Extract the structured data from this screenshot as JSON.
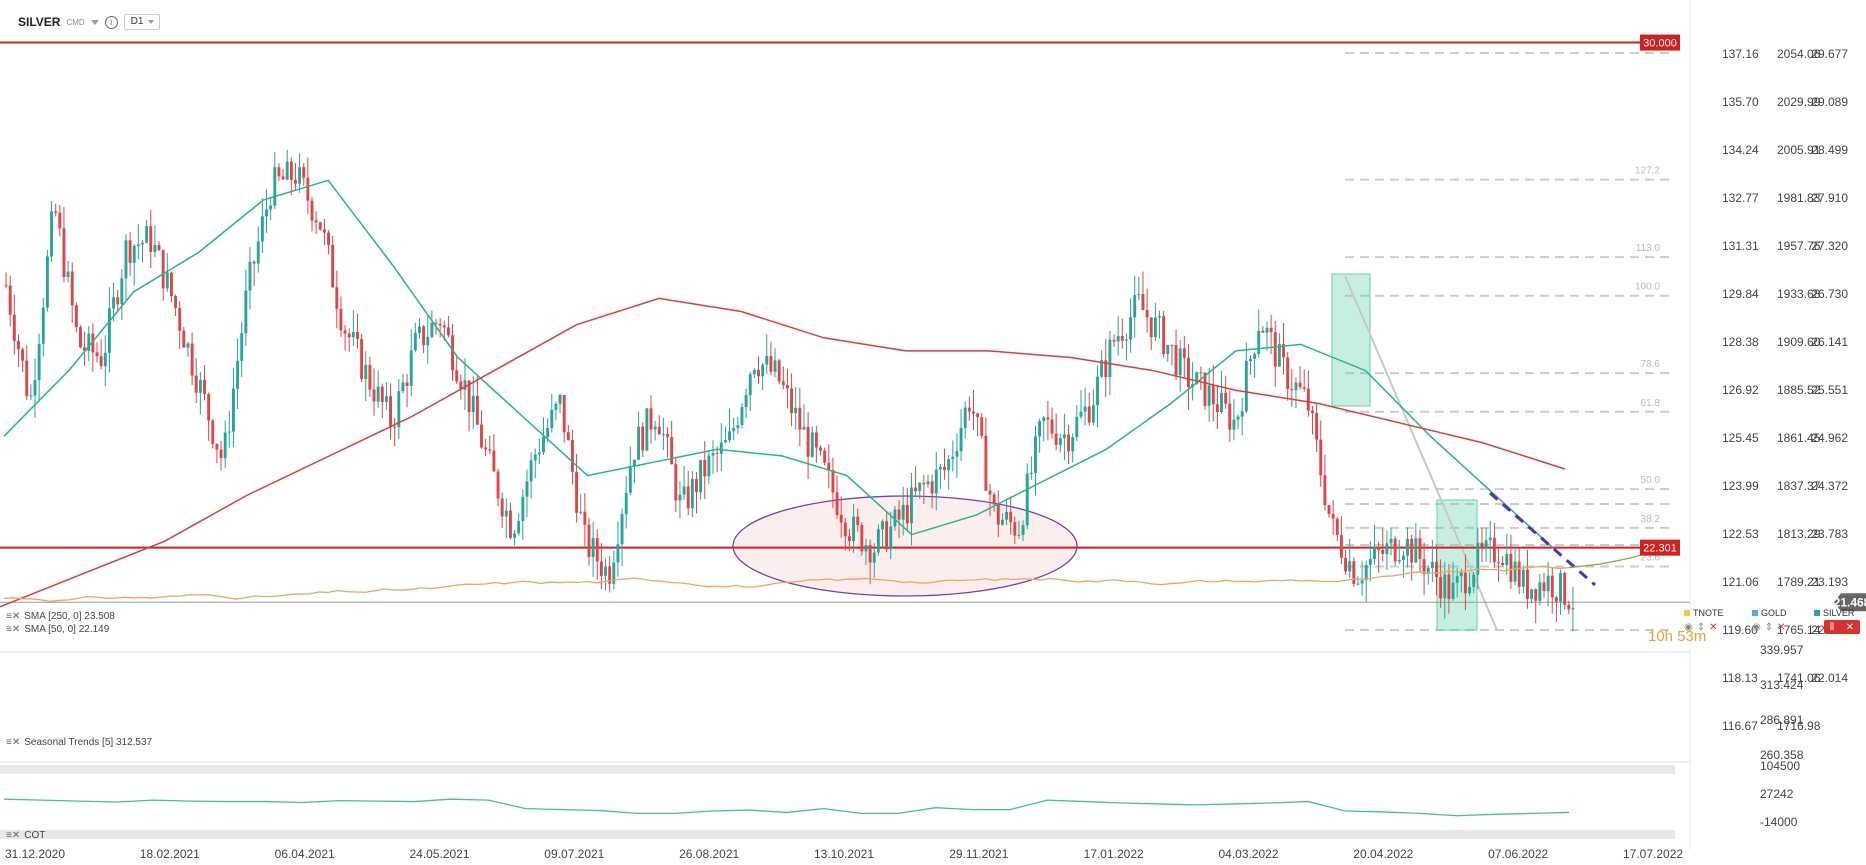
{
  "header": {
    "symbol": "SILVER",
    "exchange": "CMD",
    "timeframe": "D1"
  },
  "price_axis_1": [
    "137.16",
    "135.70",
    "134.24",
    "132.77",
    "131.31",
    "129.84",
    "128.38",
    "126.92",
    "125.45",
    "123.99",
    "122.53",
    "121.06",
    "119.60",
    "118.13",
    "116.67"
  ],
  "price_axis_2": [
    "2054.06",
    "2029.99",
    "2005.91",
    "1981.83",
    "1957.76",
    "1933.68",
    "1909.60",
    "1885.52",
    "1861.45",
    "1837.37",
    "1813.29",
    "1789.21",
    "1765.14",
    "1741.06",
    "1716.98"
  ],
  "price_axis_3": [
    "29.677",
    "29.089",
    "28.499",
    "27.910",
    "27.320",
    "26.730",
    "26.141",
    "25.551",
    "24.962",
    "24.372",
    "23.783",
    "23.193",
    "22.603",
    "22.014"
  ],
  "lower_axis_1": [
    "339.957",
    "313.424",
    "286.891",
    "260.358"
  ],
  "lower_axis_2": [
    "104500",
    "27242",
    "-14000"
  ],
  "badges": {
    "upper_line": "30.000",
    "mid_line": "22.301",
    "current": "21.468"
  },
  "fib_levels": [
    "127.2",
    "113.0",
    "100.0",
    "78.6",
    "61.8",
    "50.0",
    "38.2",
    "23.6"
  ],
  "date_labels": [
    "31.12.2020",
    "18.02.2021",
    "06.04.2021",
    "24.05.2021",
    "09.07.2021",
    "26.08.2021",
    "13.10.2021",
    "29.11.2021",
    "17.01.2022",
    "04.03.2022",
    "20.04.2022",
    "07.06.2022",
    "17.07.2022"
  ],
  "indicators": {
    "sma250": "SMA [250, 0] 23.508",
    "sma50": "SMA [50, 0] 22.149",
    "seasonal": "Seasonal   Trends [5] 312.537",
    "cot": "COT"
  },
  "legend": {
    "tnote": "TNOTE",
    "gold": "GOLD",
    "silver": "SILVER"
  },
  "countdown": {
    "hours": "10h",
    "minutes": "53m"
  },
  "colors": {
    "up": "#26a69a",
    "down": "#e04545",
    "sma50": "#20b88f",
    "sma250": "#e03c3c",
    "seasonal": "#f5a35a",
    "seasonal_forecast": "#7cb342",
    "cot": "#3fc0a0",
    "hline": "#d21f1f",
    "ellipse": "#7040c0",
    "zone": "#5fd0a8",
    "trendline": "#5a2db5"
  },
  "chart_data": {
    "type": "candlestick",
    "symbol": "SILVER",
    "timeframe": "D1",
    "x": [
      "31.12.2020",
      "18.02.2021",
      "06.04.2021",
      "24.05.2021",
      "09.07.2021",
      "26.08.2021",
      "13.10.2021",
      "29.11.2021",
      "17.01.2022",
      "04.03.2022",
      "20.04.2022",
      "07.06.2022",
      "17.07.2022"
    ],
    "y_range": [
      21.0,
      30.1
    ],
    "ohlc_close_approx": [
      26.3,
      24.5,
      27.5,
      25.4,
      25.2,
      26.9,
      27.0,
      26.0,
      24.8,
      23.6,
      26.2,
      27.8,
      28.0,
      27.3,
      25.7,
      24.9,
      24.2,
      25.4,
      25.8,
      24.8,
      23.6,
      22.6,
      23.8,
      24.5,
      22.4,
      21.9,
      23.8,
      24.4,
      22.9,
      23.5,
      23.9,
      25.2,
      24.9,
      24.1,
      23.4,
      22.6,
      22.3,
      22.7,
      23.2,
      23.5,
      24.6,
      22.8,
      22.6,
      24.2,
      24.0,
      24.5,
      25.5,
      26.0,
      25.5,
      24.9,
      24.6,
      24.2,
      25.8,
      25.0,
      24.5,
      22.6,
      21.9,
      22.2,
      22.4,
      22.0,
      21.6,
      22.1,
      22.3,
      21.7,
      21.8,
      21.5
    ],
    "sma50": [
      24.0,
      25.0,
      26.2,
      26.8,
      27.6,
      27.9,
      26.6,
      25.2,
      24.3,
      23.4,
      23.6,
      23.8,
      23.7,
      23.4,
      22.5,
      22.8,
      23.3,
      23.8,
      24.5,
      25.3,
      25.4,
      25.0,
      24.0,
      23.1,
      22.2
    ],
    "sma250": [
      21.4,
      21.9,
      22.4,
      23.1,
      23.7,
      24.3,
      25.0,
      25.7,
      26.1,
      25.9,
      25.5,
      25.3,
      25.3,
      25.2,
      25.0,
      24.7,
      24.5,
      24.2,
      23.9,
      23.5
    ],
    "horizontal_lines": [
      30.0,
      22.301
    ],
    "current_price": 21.468,
    "fibonacci": {
      "levels": [
        "127.2",
        "113.0",
        "100.0",
        "78.6",
        "61.8",
        "50.0",
        "38.2",
        "23.6"
      ],
      "prices": [
        27.91,
        26.73,
        26.141,
        24.962,
        24.372,
        23.193,
        22.603,
        22.014
      ]
    },
    "panels": [
      {
        "name": "Seasonal Trends [5]",
        "last": 312.537,
        "y_range": [
          260.358,
          339.957
        ]
      },
      {
        "name": "COT",
        "y_range": [
          -14000,
          104500
        ]
      }
    ]
  }
}
